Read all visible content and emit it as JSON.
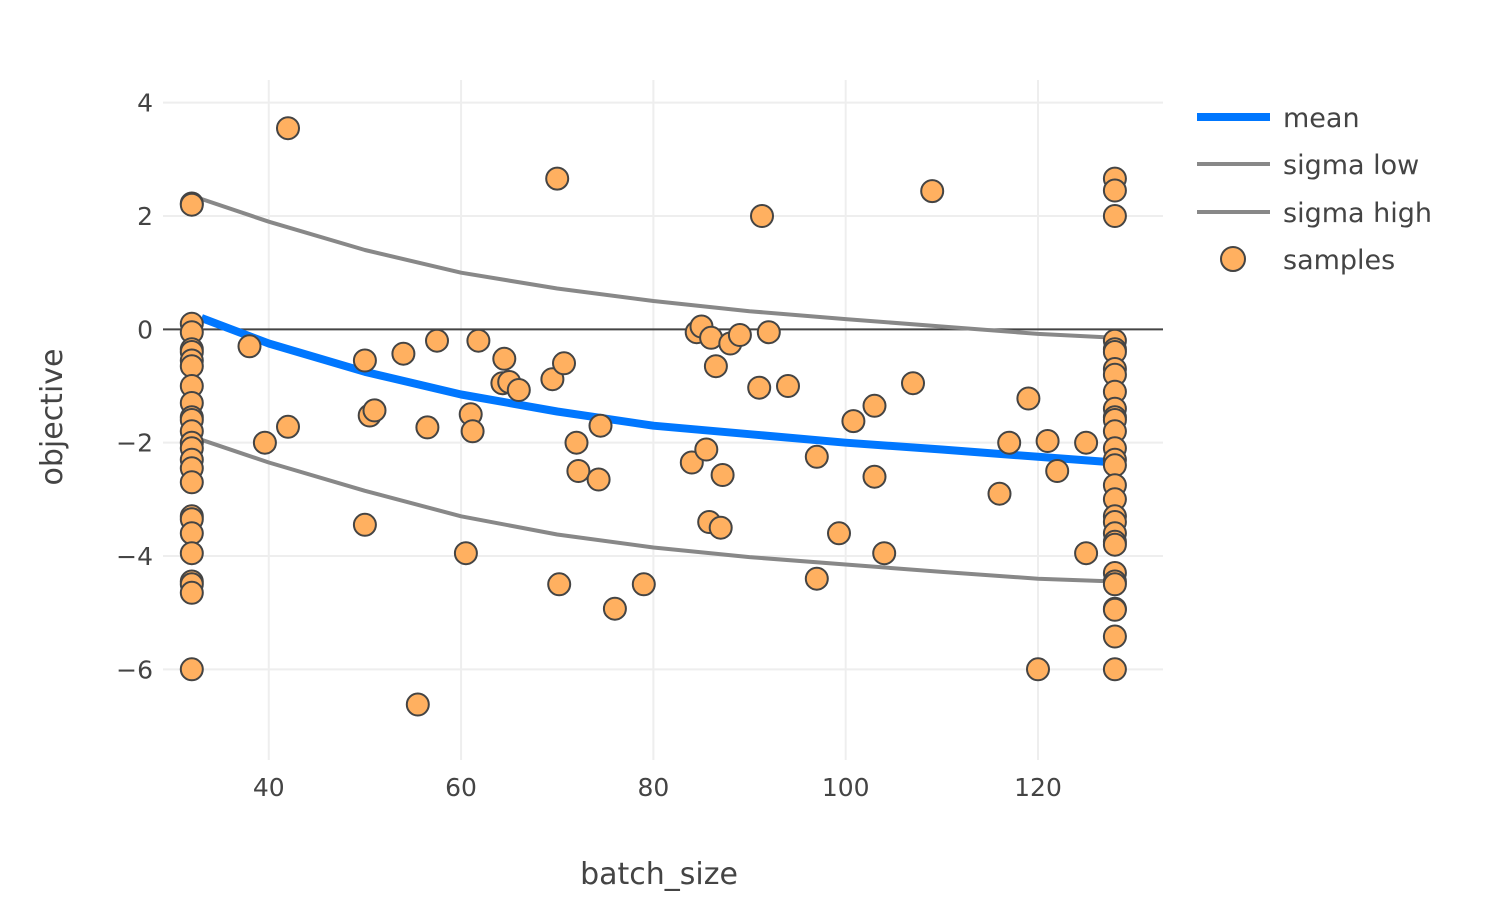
{
  "chart_data": {
    "type": "scatter",
    "xlabel": "batch_size",
    "ylabel": "objective",
    "xlim": [
      29,
      133
    ],
    "ylim": [
      -7.6,
      4.4
    ],
    "x_ticks": [
      40,
      60,
      80,
      100,
      120
    ],
    "x_tick_labels": [
      "40",
      "60",
      "80",
      "100",
      "120"
    ],
    "y_ticks": [
      4,
      2,
      0,
      -2,
      -4,
      -6
    ],
    "y_tick_labels": [
      "4",
      "2",
      "0",
      "−2",
      "−4",
      "−6"
    ],
    "grid": true,
    "legend_position": "top-right",
    "colors": {
      "mean": "#0077ff",
      "sigma": "#888888",
      "samples_fill": "#ffb060",
      "samples_edge": "#444444",
      "zero_line": "#444444",
      "grid": "#eeeeee"
    },
    "series": [
      {
        "name": "mean",
        "type": "line",
        "x": [
          33,
          40,
          50,
          60,
          70,
          80,
          90,
          100,
          110,
          120,
          128
        ],
        "y": [
          0.2,
          -0.25,
          -0.75,
          -1.15,
          -1.45,
          -1.7,
          -1.85,
          -2.0,
          -2.12,
          -2.25,
          -2.35
        ]
      },
      {
        "name": "sigma low",
        "type": "line",
        "x": [
          33,
          40,
          50,
          60,
          70,
          80,
          90,
          100,
          110,
          120,
          128
        ],
        "y": [
          -1.95,
          -2.35,
          -2.85,
          -3.3,
          -3.62,
          -3.85,
          -4.02,
          -4.15,
          -4.28,
          -4.4,
          -4.45
        ]
      },
      {
        "name": "sigma high",
        "type": "line",
        "x": [
          33,
          40,
          50,
          60,
          70,
          80,
          90,
          100,
          110,
          120,
          128
        ],
        "y": [
          2.3,
          1.9,
          1.4,
          1.0,
          0.72,
          0.5,
          0.32,
          0.18,
          0.05,
          -0.08,
          -0.15
        ]
      },
      {
        "name": "samples",
        "type": "scatter",
        "points": [
          [
            32,
            2.22
          ],
          [
            32,
            2.2
          ],
          [
            32,
            0.1
          ],
          [
            32,
            -0.05
          ],
          [
            32,
            -0.35
          ],
          [
            32,
            -0.4
          ],
          [
            32,
            -0.55
          ],
          [
            32,
            -0.65
          ],
          [
            32,
            -1.0
          ],
          [
            32,
            -1.3
          ],
          [
            32,
            -1.55
          ],
          [
            32,
            -1.6
          ],
          [
            32,
            -1.8
          ],
          [
            32,
            -2.0
          ],
          [
            32,
            -2.1
          ],
          [
            32,
            -2.3
          ],
          [
            32,
            -2.45
          ],
          [
            32,
            -2.7
          ],
          [
            32,
            -3.3
          ],
          [
            32,
            -3.35
          ],
          [
            32,
            -3.6
          ],
          [
            32,
            -3.95
          ],
          [
            32,
            -4.45
          ],
          [
            32,
            -4.5
          ],
          [
            32,
            -4.65
          ],
          [
            32,
            -6.0
          ],
          [
            38,
            -0.3
          ],
          [
            39.6,
            -2.0
          ],
          [
            42,
            3.55
          ],
          [
            42,
            -1.72
          ],
          [
            50,
            -0.55
          ],
          [
            50,
            -3.45
          ],
          [
            50.5,
            -1.52
          ],
          [
            51,
            -1.43
          ],
          [
            54,
            -0.43
          ],
          [
            55.5,
            -6.62
          ],
          [
            56.5,
            -1.73
          ],
          [
            57.5,
            -0.2
          ],
          [
            60.5,
            -3.95
          ],
          [
            61,
            -1.5
          ],
          [
            61.2,
            -1.8
          ],
          [
            61.8,
            -0.2
          ],
          [
            64.3,
            -0.95
          ],
          [
            64.5,
            -0.52
          ],
          [
            65,
            -0.93
          ],
          [
            66,
            -1.07
          ],
          [
            69.5,
            -0.88
          ],
          [
            70,
            2.66
          ],
          [
            70.2,
            -4.5
          ],
          [
            70.7,
            -0.6
          ],
          [
            72,
            -2.0
          ],
          [
            72.2,
            -2.5
          ],
          [
            74.3,
            -2.65
          ],
          [
            74.5,
            -1.7
          ],
          [
            76,
            -4.93
          ],
          [
            79,
            -4.5
          ],
          [
            84,
            -2.35
          ],
          [
            84.5,
            -0.05
          ],
          [
            85,
            0.05
          ],
          [
            85.5,
            -2.12
          ],
          [
            85.8,
            -3.4
          ],
          [
            86,
            -0.15
          ],
          [
            86.5,
            -0.65
          ],
          [
            87,
            -3.5
          ],
          [
            87.2,
            -2.57
          ],
          [
            88,
            -0.25
          ],
          [
            89,
            -0.1
          ],
          [
            91,
            -1.03
          ],
          [
            91.3,
            2.0
          ],
          [
            92,
            -0.05
          ],
          [
            94,
            -1.0
          ],
          [
            97,
            -2.25
          ],
          [
            97,
            -4.4
          ],
          [
            99.3,
            -3.6
          ],
          [
            100.8,
            -1.62
          ],
          [
            103,
            -1.35
          ],
          [
            103,
            -2.6
          ],
          [
            104,
            -3.95
          ],
          [
            107,
            -0.95
          ],
          [
            109,
            2.44
          ],
          [
            116,
            -2.9
          ],
          [
            117,
            -2.0
          ],
          [
            119,
            -1.22
          ],
          [
            120,
            -6.0
          ],
          [
            121,
            -1.97
          ],
          [
            122,
            -2.5
          ],
          [
            125,
            -2.0
          ],
          [
            125,
            -3.95
          ],
          [
            128,
            2.66
          ],
          [
            128,
            2.45
          ],
          [
            128,
            2.0
          ],
          [
            128,
            -0.2
          ],
          [
            128,
            -0.35
          ],
          [
            128,
            -0.4
          ],
          [
            128,
            -0.7
          ],
          [
            128,
            -0.8
          ],
          [
            128,
            -1.1
          ],
          [
            128,
            -1.4
          ],
          [
            128,
            -1.55
          ],
          [
            128,
            -1.6
          ],
          [
            128,
            -1.8
          ],
          [
            128,
            -2.1
          ],
          [
            128,
            -2.3
          ],
          [
            128,
            -2.4
          ],
          [
            128,
            -2.75
          ],
          [
            128,
            -3.0
          ],
          [
            128,
            -3.3
          ],
          [
            128,
            -3.4
          ],
          [
            128,
            -3.6
          ],
          [
            128,
            -3.75
          ],
          [
            128,
            -3.8
          ],
          [
            128,
            -4.3
          ],
          [
            128,
            -4.45
          ],
          [
            128,
            -4.5
          ],
          [
            128,
            -4.93
          ],
          [
            128,
            -4.95
          ],
          [
            128,
            -5.42
          ],
          [
            128,
            -6.0
          ]
        ]
      }
    ]
  }
}
